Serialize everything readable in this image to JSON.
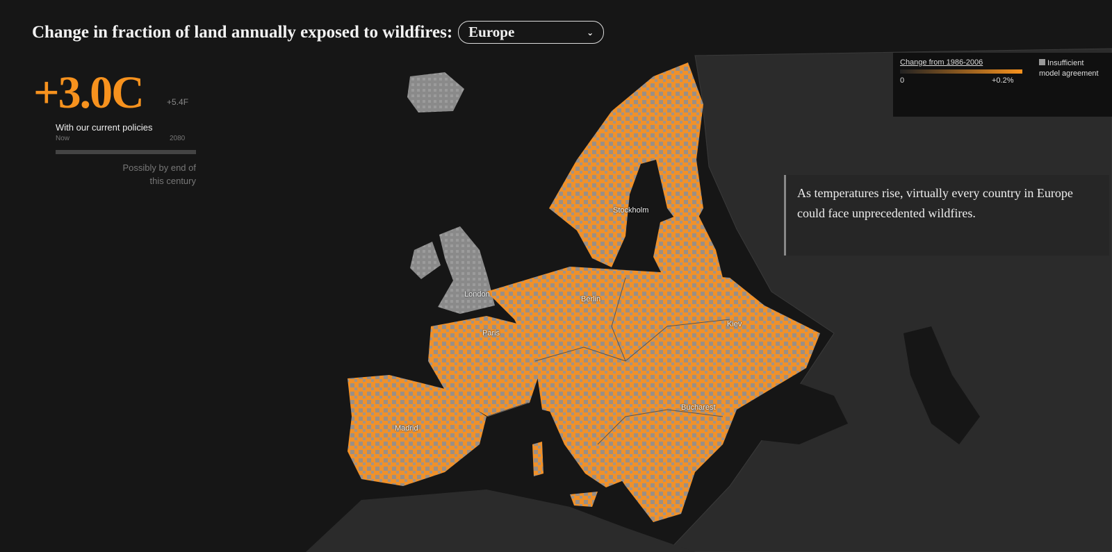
{
  "header": {
    "title": "Change in fraction of land annually exposed to wildfires:",
    "region_select": "Europe"
  },
  "scenario": {
    "temperature_c": "+3.0C",
    "temperature_f": "+5.4F",
    "policy": "With our current policies",
    "timeline_start": "Now",
    "timeline_end": "2080",
    "timing_note": "Possibly by end of this century"
  },
  "legend": {
    "title": "Change from 1986-2006",
    "min_label": "0",
    "max_label": "+0.2%",
    "insufficient": "Insufficient model agreement"
  },
  "annotation": "As temperatures rise, virtually every country in Europe could face unprecedented wildfires.",
  "cities": [
    "Stockholm",
    "London",
    "Berlin",
    "Paris",
    "Kiev",
    "Bucharest",
    "Madrid"
  ]
}
